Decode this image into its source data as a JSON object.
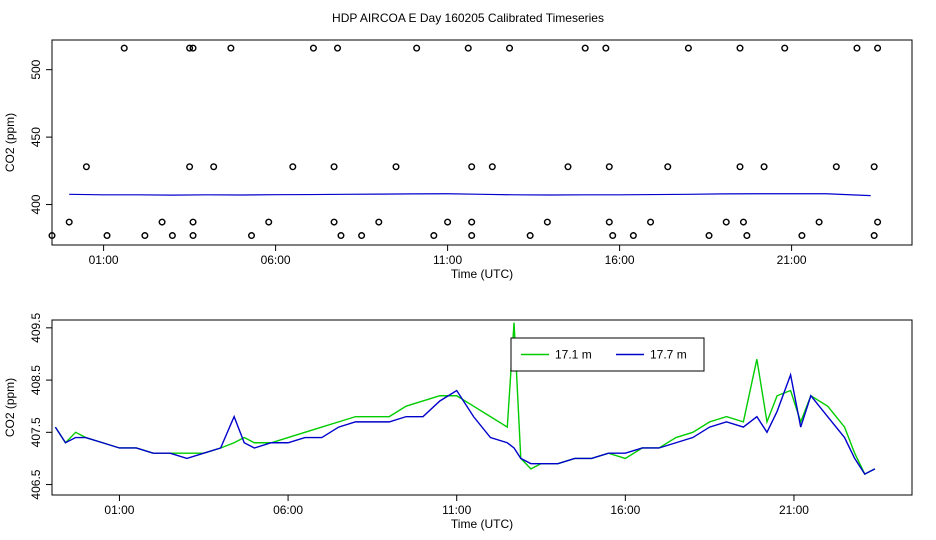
{
  "page_title": "HDP AIRCOA E  Day 160205  Calibrated Timeseries",
  "colors": {
    "green": "#00cc00",
    "blue": "#0000cc",
    "axis": "#000000"
  },
  "chart_data": [
    {
      "type": "scatter",
      "xlabel": "Time (UTC)",
      "ylabel": "CO2 (ppm)",
      "xlim": [
        -0.5,
        24.5
      ],
      "ylim": [
        370,
        522
      ],
      "x_ticks": [
        1,
        6,
        11,
        16,
        21
      ],
      "x_tick_labels": [
        "01:00",
        "06:00",
        "11:00",
        "16:00",
        "21:00"
      ],
      "y_ticks": [
        400,
        450,
        500
      ],
      "y_tick_labels": [
        "400",
        "450",
        "500"
      ],
      "line": {
        "x": [
          0,
          1,
          2,
          3,
          4,
          5,
          6,
          7,
          8,
          9,
          10,
          11,
          12,
          13,
          14,
          15,
          16,
          17,
          18,
          19,
          20,
          21,
          22,
          23.3
        ],
        "values": [
          407.6,
          407.2,
          407.2,
          407.0,
          407.2,
          407.1,
          407.3,
          407.4,
          407.6,
          407.7,
          407.9,
          408.0,
          407.6,
          407.2,
          407.1,
          407.2,
          407.2,
          407.4,
          407.6,
          407.9,
          408.0,
          408.0,
          408.0,
          406.6
        ]
      },
      "points": {
        "x": [
          -0.5,
          0.0,
          0.5,
          1.1,
          1.6,
          2.2,
          2.7,
          3.0,
          3.5,
          3.5,
          3.6,
          3.6,
          3.6,
          4.2,
          4.7,
          5.3,
          5.8,
          6.5,
          7.1,
          7.7,
          7.7,
          7.8,
          7.9,
          8.5,
          9.0,
          9.5,
          10.1,
          10.6,
          11.0,
          11.6,
          11.7,
          11.7,
          11.7,
          12.3,
          12.8,
          13.4,
          13.9,
          14.5,
          15.0,
          15.6,
          15.7,
          15.7,
          15.8,
          16.4,
          16.9,
          17.4,
          18.0,
          18.6,
          19.1,
          19.5,
          19.5,
          19.6,
          19.7,
          20.2,
          20.8,
          21.3,
          21.8,
          22.3,
          22.9,
          23.4,
          23.4,
          23.5,
          23.5
        ],
        "values": [
          377,
          387,
          428,
          377,
          516,
          377,
          387,
          377,
          428,
          516,
          387,
          377,
          516,
          428,
          516,
          377,
          387,
          428,
          516,
          387,
          428,
          516,
          377,
          377,
          387,
          428,
          516,
          377,
          387,
          516,
          428,
          387,
          377,
          428,
          516,
          377,
          387,
          428,
          516,
          516,
          428,
          387,
          377,
          377,
          387,
          428,
          516,
          377,
          387,
          516,
          428,
          387,
          377,
          428,
          516,
          377,
          387,
          428,
          516,
          377,
          428,
          516,
          387
        ]
      }
    },
    {
      "type": "line",
      "xlabel": "Time (UTC)",
      "ylabel": "CO2 (ppm)",
      "xlim": [
        -1.0,
        24.5
      ],
      "ylim": [
        406.3,
        409.65
      ],
      "x_ticks": [
        1,
        6,
        11,
        16,
        21
      ],
      "x_tick_labels": [
        "01:00",
        "06:00",
        "11:00",
        "16:00",
        "21:00"
      ],
      "y_ticks": [
        406.5,
        407.5,
        408.5,
        409.5
      ],
      "y_tick_labels": [
        "406.5",
        "407.5",
        "408.5",
        "409.5"
      ],
      "legend": {
        "placement": "top-center",
        "entries": [
          "17.1 m",
          "17.7 m"
        ]
      },
      "x": [
        -0.9,
        -0.6,
        -0.3,
        0.0,
        0.5,
        1.0,
        1.5,
        2.0,
        2.5,
        3.0,
        3.5,
        4.0,
        4.4,
        4.7,
        5.0,
        5.5,
        6.0,
        6.5,
        7.0,
        7.5,
        8.0,
        8.5,
        9.0,
        9.5,
        10.0,
        10.5,
        11.0,
        11.5,
        12.0,
        12.5,
        12.7,
        12.9,
        13.2,
        13.5,
        14.0,
        14.5,
        15.0,
        15.5,
        16.0,
        16.5,
        17.0,
        17.5,
        18.0,
        18.5,
        19.0,
        19.5,
        19.9,
        20.2,
        20.5,
        20.9,
        21.2,
        21.5,
        22.0,
        22.5,
        22.8,
        23.1,
        23.4
      ],
      "series": [
        {
          "name": "17.1 m",
          "values": [
            407.6,
            407.3,
            407.5,
            407.4,
            407.3,
            407.2,
            407.2,
            407.1,
            407.1,
            407.1,
            407.1,
            407.2,
            407.3,
            407.4,
            407.3,
            407.3,
            407.4,
            407.5,
            407.6,
            407.7,
            407.8,
            407.8,
            407.8,
            408.0,
            408.1,
            408.2,
            408.2,
            408.0,
            407.8,
            407.6,
            409.6,
            407.0,
            406.8,
            406.9,
            406.9,
            407.0,
            407.0,
            407.1,
            407.0,
            407.2,
            407.2,
            407.4,
            407.5,
            407.7,
            407.8,
            407.7,
            408.9,
            407.7,
            408.2,
            408.3,
            407.7,
            408.2,
            408.0,
            407.6,
            407.1,
            406.7,
            406.8
          ]
        },
        {
          "name": "17.7 m",
          "values": [
            407.6,
            407.3,
            407.4,
            407.4,
            407.3,
            407.2,
            407.2,
            407.1,
            407.1,
            407.0,
            407.1,
            407.2,
            407.8,
            407.3,
            407.2,
            407.3,
            407.3,
            407.4,
            407.4,
            407.6,
            407.7,
            407.7,
            407.7,
            407.8,
            407.8,
            408.1,
            408.3,
            407.8,
            407.4,
            407.3,
            407.2,
            407.0,
            406.9,
            406.9,
            406.9,
            407.0,
            407.0,
            407.1,
            407.1,
            407.2,
            407.2,
            407.3,
            407.4,
            407.6,
            407.7,
            407.6,
            407.8,
            407.5,
            407.9,
            408.6,
            407.6,
            408.2,
            407.8,
            407.4,
            407.0,
            406.7,
            406.8
          ]
        }
      ]
    }
  ]
}
